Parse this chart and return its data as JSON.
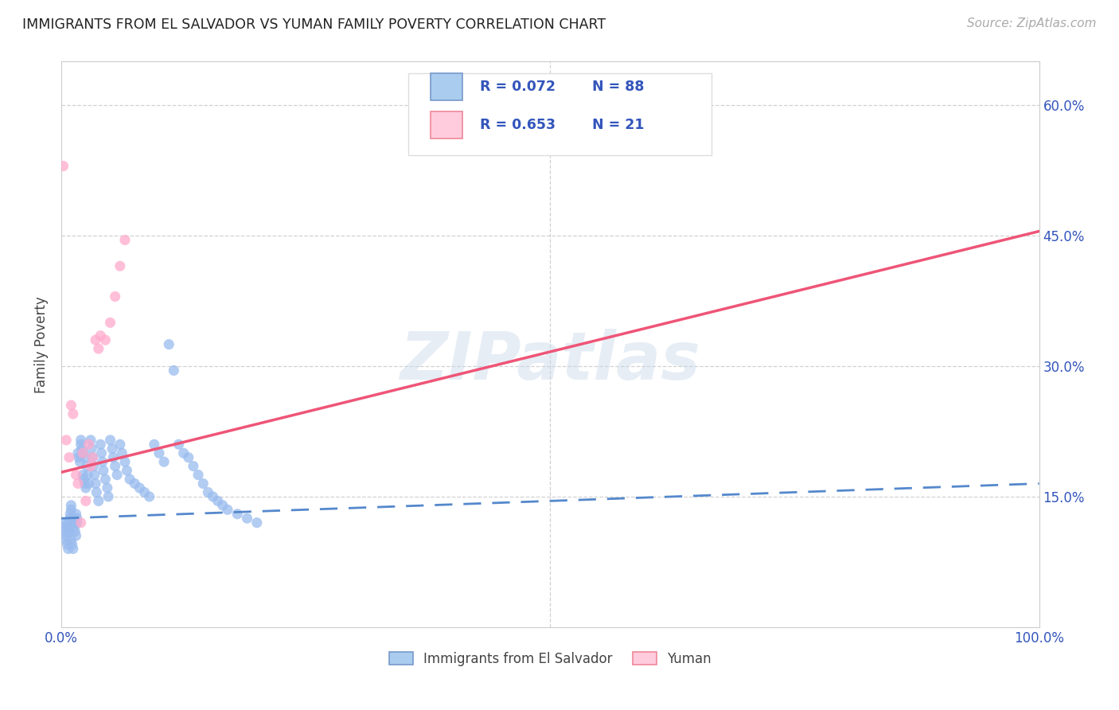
{
  "title": "IMMIGRANTS FROM EL SALVADOR VS YUMAN FAMILY POVERTY CORRELATION CHART",
  "source": "Source: ZipAtlas.com",
  "ylabel": "Family Poverty",
  "xlabel": "",
  "title_fontsize": 12.5,
  "source_fontsize": 11,
  "ylabel_color": "#444444",
  "tick_color": "#3355bb",
  "background_color": "#ffffff",
  "grid_color": "#cccccc",
  "watermark": "ZIPatlas",
  "xlim": [
    0,
    1.0
  ],
  "ylim": [
    0,
    0.65
  ],
  "xticks": [
    0.0,
    1.0
  ],
  "xtick_labels": [
    "0.0%",
    "100.0%"
  ],
  "yticks": [
    0.15,
    0.3,
    0.45,
    0.6
  ],
  "ytick_labels": [
    "15.0%",
    "30.0%",
    "45.0%",
    "60.0%"
  ],
  "blue_scatter_x": [
    0.002,
    0.003,
    0.004,
    0.005,
    0.005,
    0.006,
    0.007,
    0.007,
    0.008,
    0.008,
    0.009,
    0.009,
    0.01,
    0.01,
    0.01,
    0.011,
    0.012,
    0.012,
    0.013,
    0.013,
    0.014,
    0.015,
    0.015,
    0.016,
    0.016,
    0.017,
    0.018,
    0.019,
    0.02,
    0.02,
    0.021,
    0.022,
    0.022,
    0.023,
    0.024,
    0.025,
    0.025,
    0.026,
    0.027,
    0.028,
    0.03,
    0.031,
    0.032,
    0.033,
    0.034,
    0.035,
    0.036,
    0.038,
    0.04,
    0.041,
    0.042,
    0.043,
    0.045,
    0.047,
    0.048,
    0.05,
    0.052,
    0.053,
    0.055,
    0.057,
    0.06,
    0.062,
    0.065,
    0.067,
    0.07,
    0.075,
    0.08,
    0.085,
    0.09,
    0.095,
    0.1,
    0.105,
    0.11,
    0.115,
    0.12,
    0.125,
    0.13,
    0.135,
    0.14,
    0.145,
    0.15,
    0.155,
    0.16,
    0.165,
    0.17,
    0.18,
    0.19,
    0.2
  ],
  "blue_scatter_y": [
    0.12,
    0.115,
    0.11,
    0.105,
    0.1,
    0.095,
    0.09,
    0.12,
    0.115,
    0.11,
    0.125,
    0.13,
    0.135,
    0.14,
    0.1,
    0.095,
    0.09,
    0.125,
    0.12,
    0.115,
    0.11,
    0.105,
    0.13,
    0.125,
    0.12,
    0.2,
    0.195,
    0.19,
    0.215,
    0.21,
    0.205,
    0.2,
    0.175,
    0.17,
    0.165,
    0.16,
    0.195,
    0.185,
    0.175,
    0.165,
    0.215,
    0.205,
    0.195,
    0.185,
    0.175,
    0.165,
    0.155,
    0.145,
    0.21,
    0.2,
    0.19,
    0.18,
    0.17,
    0.16,
    0.15,
    0.215,
    0.205,
    0.195,
    0.185,
    0.175,
    0.21,
    0.2,
    0.19,
    0.18,
    0.17,
    0.165,
    0.16,
    0.155,
    0.15,
    0.21,
    0.2,
    0.19,
    0.325,
    0.295,
    0.21,
    0.2,
    0.195,
    0.185,
    0.175,
    0.165,
    0.155,
    0.15,
    0.145,
    0.14,
    0.135,
    0.13,
    0.125,
    0.12
  ],
  "pink_scatter_x": [
    0.002,
    0.005,
    0.008,
    0.01,
    0.012,
    0.015,
    0.017,
    0.02,
    0.022,
    0.025,
    0.028,
    0.03,
    0.032,
    0.035,
    0.038,
    0.04,
    0.045,
    0.05,
    0.055,
    0.06,
    0.065
  ],
  "pink_scatter_y": [
    0.53,
    0.215,
    0.195,
    0.255,
    0.245,
    0.175,
    0.165,
    0.12,
    0.2,
    0.145,
    0.21,
    0.185,
    0.195,
    0.33,
    0.32,
    0.335,
    0.33,
    0.35,
    0.38,
    0.415,
    0.445
  ],
  "blue_line_y_start": 0.125,
  "blue_line_y_end": 0.165,
  "blue_line_color": "#5588cc",
  "blue_line_dash": true,
  "pink_line_y_start": 0.178,
  "pink_line_y_end": 0.455,
  "pink_line_color": "#ee5577",
  "blue_scatter_color": "#99bbee",
  "pink_scatter_color": "#ffaacc",
  "scatter_alpha": 0.75,
  "scatter_size": 90,
  "legend_text_color": "#3355bb",
  "legend_blue_fill": "#aaccee",
  "legend_blue_edge": "#7799cc",
  "legend_pink_fill": "#ffccdd",
  "legend_pink_edge": "#ee8899",
  "bottom_legend_blue_label": "Immigrants from El Salvador",
  "bottom_legend_pink_label": "Yuman"
}
